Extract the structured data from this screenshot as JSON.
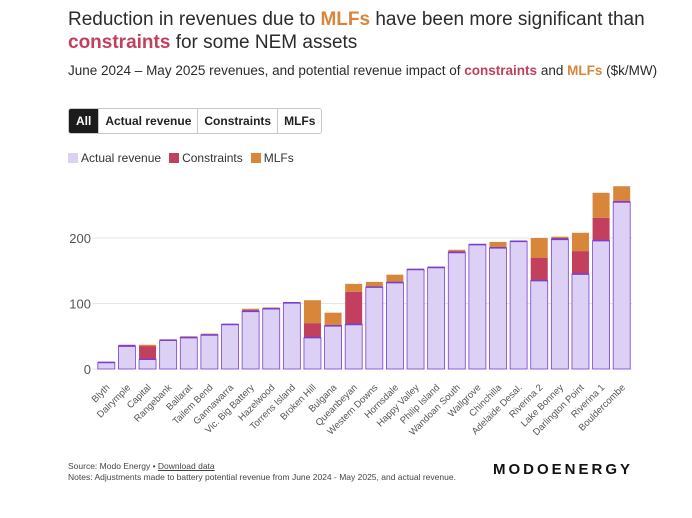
{
  "title": {
    "p1": "Reduction in revenues due to ",
    "mlfs": "MLFs",
    "p2": " have been more significant than ",
    "constraints": "constraints",
    "p3": " for some NEM assets"
  },
  "subtitle": {
    "p1": "June 2024 – May 2025 revenues, and potential revenue impact of ",
    "constraints": "constraints",
    "p2": " and ",
    "mlfs": "MLFs",
    "p3": " ($k/MW)"
  },
  "tabs": [
    "All",
    "Actual revenue",
    "Constraints",
    "MLFs"
  ],
  "colors": {
    "actual": "#dcd0f5",
    "actual_edge": "#7b3fd0",
    "constraints": "#c2405e",
    "mlfs": "#d8863a"
  },
  "chart_data": {
    "type": "bar",
    "stacked": true,
    "legend": [
      "Actual revenue",
      "Constraints",
      "MLFs"
    ],
    "yticks": [
      0,
      100,
      200
    ],
    "ylim": [
      -5,
      290
    ],
    "categories": [
      "Blyth",
      "Dalrymple",
      "Capital",
      "Rangebank",
      "Ballarat",
      "Tailem Bend",
      "Gannawarra",
      "Vic. Big Battery",
      "Hazelwood",
      "Torrens Island",
      "Broken Hill",
      "Bulgana",
      "Queanbeyan",
      "Western Downs",
      "Hornsdale",
      "Happy Valley",
      "Philip Island",
      "Wandoan South",
      "Wallgrove",
      "Chinchilla",
      "Adelaide Desal.",
      "Riverina 2",
      "Lake Bonney",
      "Darlington Point",
      "Riverina 1",
      "Bouldercombe"
    ],
    "series": [
      {
        "name": "Actual revenue",
        "values": [
          10,
          35,
          15,
          44,
          48,
          52,
          68,
          88,
          92,
          101,
          48,
          66,
          68,
          125,
          132,
          152,
          155,
          178,
          190,
          185,
          195,
          135,
          198,
          145,
          196,
          255
        ]
      },
      {
        "name": "Constraints",
        "values": [
          0,
          2,
          20,
          0,
          1,
          1,
          0,
          2,
          1,
          0,
          22,
          0,
          50,
          0,
          0,
          0,
          1,
          2,
          0,
          0,
          0,
          35,
          2,
          35,
          35,
          2
        ]
      },
      {
        "name": "MLFs",
        "values": [
          0,
          0,
          2,
          0,
          1,
          1,
          0,
          2,
          1,
          0,
          35,
          20,
          12,
          8,
          12,
          0,
          0,
          2,
          0,
          9,
          0,
          30,
          2,
          28,
          38,
          22
        ]
      }
    ]
  },
  "footer": {
    "source": "Source: Modo Energy • ",
    "download": "Download data",
    "notes": "Notes: Adjustments made to battery potential revenue from June 2024 - May 2025, and actual revenue."
  },
  "brand": "MODOENERGY"
}
